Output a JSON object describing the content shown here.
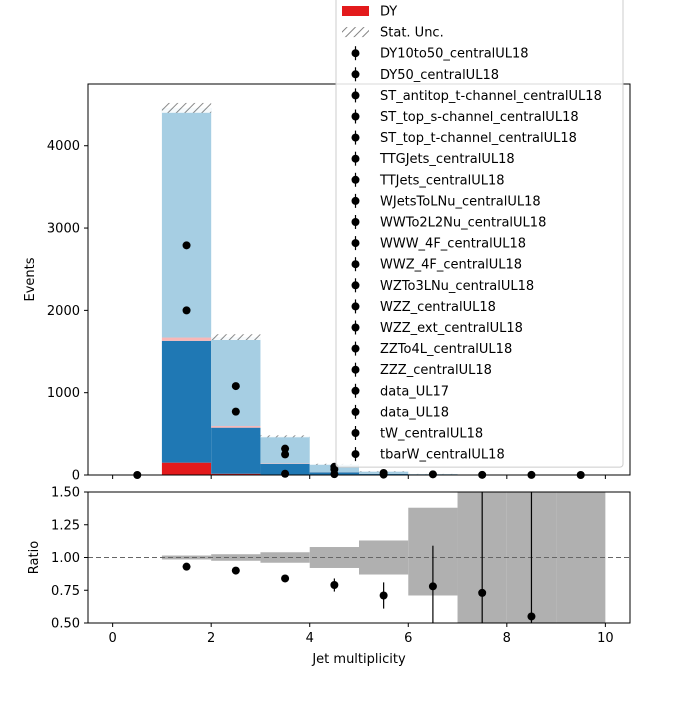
{
  "chart_data": [
    {
      "type": "bar",
      "panel": "main",
      "stacked": true,
      "xlabel": "",
      "ylabel": "Events",
      "xlim": [
        -0.5,
        10.5
      ],
      "ylim": [
        0,
        4750
      ],
      "x_edges": [
        0,
        1,
        2,
        3,
        4,
        5,
        6,
        7,
        8,
        9,
        10
      ],
      "y_ticks": [
        0,
        1000,
        2000,
        3000,
        4000
      ],
      "y_tick_labels": [
        "0",
        "1000",
        "2000",
        "3000",
        "4000"
      ],
      "colors": {
        "DY": "#e31a1c",
        "dark_blue": "#1f78b4",
        "light_blue": "#a6cee3",
        "thin_band": "#f8b7b7",
        "stat_unc_hatch": "#808080",
        "data_points": "#000000"
      },
      "stack": [
        {
          "name": "DY",
          "color": "#e31a1c",
          "values": [
            0,
            150,
            15,
            5,
            3,
            2,
            1,
            0,
            0,
            0
          ]
        },
        {
          "name": "",
          "color": "#1f78b4",
          "values": [
            0,
            1480,
            560,
            130,
            30,
            10,
            3,
            1,
            0,
            0
          ]
        },
        {
          "name": "",
          "color": "#f8b7b7",
          "values": [
            0,
            40,
            20,
            5,
            2,
            1,
            0,
            0,
            0,
            0
          ]
        },
        {
          "name": "",
          "color": "#a6cee3",
          "values": [
            0,
            2790,
            1080,
            330,
            95,
            30,
            8,
            2,
            1,
            0
          ]
        }
      ],
      "stat_unc": [
        0,
        60,
        35,
        12,
        6,
        3,
        1,
        1,
        1,
        0
      ],
      "data_markers": [
        {
          "x": 0.5,
          "values": [
            0
          ]
        },
        {
          "x": 1.5,
          "values": [
            2790,
            2000
          ]
        },
        {
          "x": 2.5,
          "values": [
            1080,
            770
          ]
        },
        {
          "x": 3.5,
          "values": [
            320,
            250,
            15
          ]
        },
        {
          "x": 4.5,
          "values": [
            100,
            70,
            10
          ]
        },
        {
          "x": 5.5,
          "values": [
            25,
            5
          ]
        },
        {
          "x": 6.5,
          "values": [
            8
          ]
        },
        {
          "x": 7.5,
          "values": [
            2
          ]
        },
        {
          "x": 8.5,
          "values": [
            1
          ]
        },
        {
          "x": 9.5,
          "values": [
            0
          ]
        }
      ],
      "legend": {
        "placement": "top-right",
        "entries": [
          {
            "label": "DY",
            "kind": "patch",
            "color": "#e31a1c"
          },
          {
            "label": "Stat. Unc.",
            "kind": "hatch"
          },
          {
            "label": "DY10to50_centralUL18",
            "kind": "marker"
          },
          {
            "label": "DY50_centralUL18",
            "kind": "marker"
          },
          {
            "label": "ST_antitop_t-channel_centralUL18",
            "kind": "marker"
          },
          {
            "label": "ST_top_s-channel_centralUL18",
            "kind": "marker"
          },
          {
            "label": "ST_top_t-channel_centralUL18",
            "kind": "marker"
          },
          {
            "label": "TTGJets_centralUL18",
            "kind": "marker"
          },
          {
            "label": "TTJets_centralUL18",
            "kind": "marker"
          },
          {
            "label": "WJetsToLNu_centralUL18",
            "kind": "marker"
          },
          {
            "label": "WWTo2L2Nu_centralUL18",
            "kind": "marker"
          },
          {
            "label": "WWW_4F_centralUL18",
            "kind": "marker"
          },
          {
            "label": "WWZ_4F_centralUL18",
            "kind": "marker"
          },
          {
            "label": "WZTo3LNu_centralUL18",
            "kind": "marker"
          },
          {
            "label": "WZZ_centralUL18",
            "kind": "marker"
          },
          {
            "label": "WZZ_ext_centralUL18",
            "kind": "marker"
          },
          {
            "label": "ZZTo4L_centralUL18",
            "kind": "marker"
          },
          {
            "label": "ZZZ_centralUL18",
            "kind": "marker"
          },
          {
            "label": "data_UL17",
            "kind": "marker"
          },
          {
            "label": "data_UL18",
            "kind": "marker"
          },
          {
            "label": "tW_centralUL18",
            "kind": "marker"
          },
          {
            "label": "tbarW_centralUL18",
            "kind": "marker"
          }
        ]
      }
    },
    {
      "type": "scatter",
      "panel": "ratio",
      "xlabel": "Jet multiplicity",
      "ylabel": "Ratio",
      "xlim": [
        -0.5,
        10.5
      ],
      "ylim": [
        0.5,
        1.5
      ],
      "x_ticks": [
        0,
        2,
        4,
        6,
        8,
        10
      ],
      "x_tick_labels": [
        "0",
        "2",
        "4",
        "6",
        "8",
        "10"
      ],
      "y_ticks": [
        0.5,
        0.75,
        1.0,
        1.25,
        1.5
      ],
      "y_tick_labels": [
        "0.50",
        "0.75",
        "1.00",
        "1.25",
        "1.50"
      ],
      "reference_line": 1.0,
      "band_color": "#b0b0b0",
      "unc_band": [
        {
          "x0": 1,
          "x1": 2,
          "lo": 0.985,
          "hi": 1.015
        },
        {
          "x0": 2,
          "x1": 3,
          "lo": 0.975,
          "hi": 1.025
        },
        {
          "x0": 3,
          "x1": 4,
          "lo": 0.96,
          "hi": 1.04
        },
        {
          "x0": 4,
          "x1": 5,
          "lo": 0.92,
          "hi": 1.08
        },
        {
          "x0": 5,
          "x1": 6,
          "lo": 0.87,
          "hi": 1.13
        },
        {
          "x0": 6,
          "x1": 7,
          "lo": 0.71,
          "hi": 1.38
        },
        {
          "x0": 7,
          "x1": 8,
          "lo": 0.5,
          "hi": 1.5
        },
        {
          "x0": 8,
          "x1": 9,
          "lo": 0.5,
          "hi": 1.5
        },
        {
          "x0": 9,
          "x1": 10,
          "lo": 0.5,
          "hi": 1.5
        }
      ],
      "points": [
        {
          "x": 1.5,
          "y": 0.93,
          "err": 0.0
        },
        {
          "x": 2.5,
          "y": 0.9,
          "err": 0.0
        },
        {
          "x": 3.5,
          "y": 0.84,
          "err": 0.02
        },
        {
          "x": 4.5,
          "y": 0.79,
          "err": 0.05
        },
        {
          "x": 5.5,
          "y": 0.71,
          "err": 0.1
        },
        {
          "x": 6.5,
          "y": 0.78,
          "err": 0.31
        },
        {
          "x": 7.5,
          "y": 0.73,
          "err": 0.8
        },
        {
          "x": 8.5,
          "y": 0.55,
          "err": 1.0
        }
      ]
    }
  ]
}
